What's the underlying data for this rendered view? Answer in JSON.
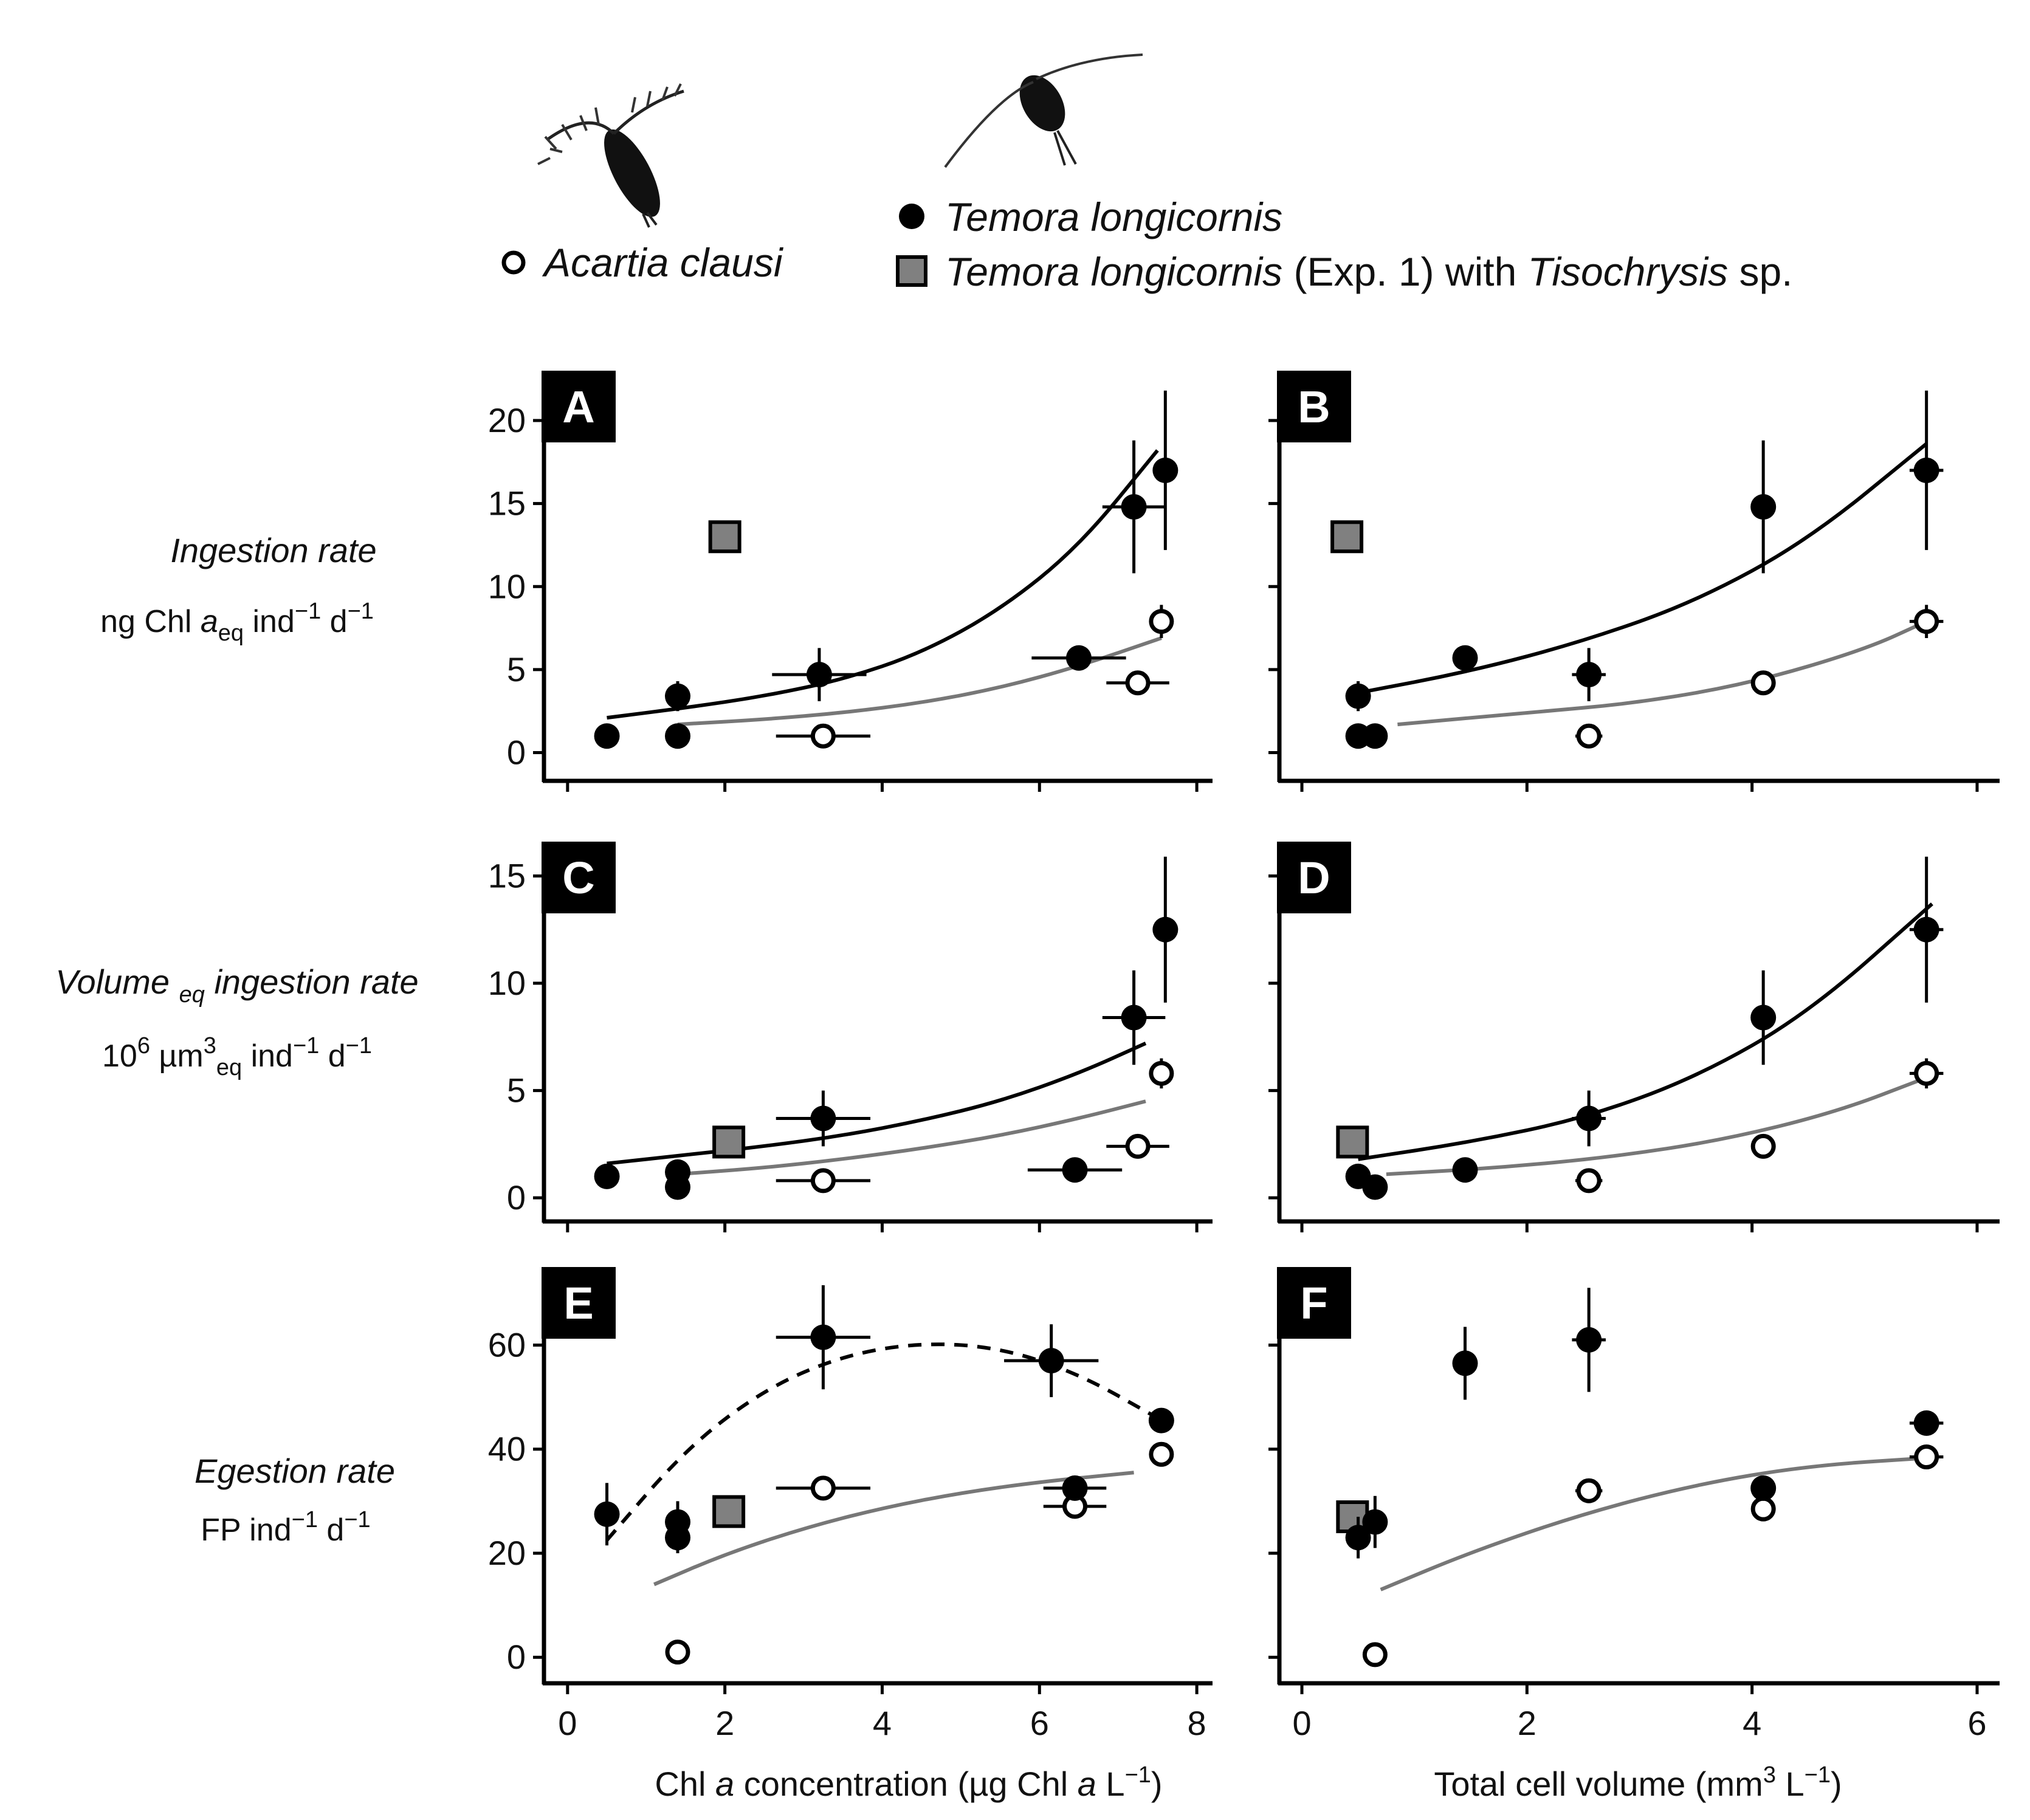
{
  "legend": {
    "acartia": "Acartia clausi",
    "temora": "Temora longicornis",
    "temora_exp1_a": "Temora longicornis",
    "temora_exp1_b": "(Exp. 1) with",
    "temora_exp1_c": "Tisochrysis",
    "temora_exp1_d": "sp."
  },
  "row_labels": [
    {
      "line1": "Ingestion rate",
      "line2_parts": [
        "ng Chl ",
        "a",
        "eq",
        " ind",
        "−1",
        " d",
        "−1"
      ]
    },
    {
      "line1_parts": [
        "Volume ",
        "eq",
        " ingestion rate"
      ],
      "line2_parts": [
        "10",
        "6",
        " µm",
        "3",
        "eq",
        " ind",
        "−1",
        " d",
        "−1"
      ]
    },
    {
      "line1": "Egestion rate",
      "line2_parts": [
        "FP ind",
        "−1",
        " d",
        "−1"
      ]
    }
  ],
  "x_titles": {
    "left_parts": [
      "Chl ",
      "a",
      " concentration (µg Chl ",
      "a",
      " L",
      "−1",
      ")"
    ],
    "right_parts": [
      "Total cell volume (mm",
      "3",
      " L",
      "−1",
      ")"
    ]
  },
  "colors": {
    "black": "#000000",
    "grey_fill": "#808080",
    "grey_line": "#777777",
    "white": "#ffffff"
  },
  "chart_data": [
    {
      "panel": "A",
      "type": "scatter",
      "xlabel": "",
      "ylabel": "Ingestion rate",
      "xlim": [
        -0.3,
        8.2
      ],
      "ylim": [
        -1.7,
        23
      ],
      "xticks": [
        0,
        2,
        4,
        6,
        8
      ],
      "yticks": [
        0,
        5,
        10,
        15,
        20
      ],
      "temora": [
        {
          "x": 0.5,
          "y": 1.0
        },
        {
          "x": 1.4,
          "y": 1.0,
          "yerr": 0.5
        },
        {
          "x": 1.4,
          "y": 3.4,
          "yerr": 0.9
        },
        {
          "x": 3.2,
          "y": 4.7,
          "xerr": 0.6,
          "yerr": 1.6
        },
        {
          "x": 6.5,
          "y": 5.7,
          "xerr": 0.6
        },
        {
          "x": 7.2,
          "y": 14.8,
          "xerr": 0.4,
          "yerr": 4.0
        },
        {
          "x": 7.6,
          "y": 17.0,
          "yerr": 4.8
        }
      ],
      "acartia": [
        {
          "x": 3.25,
          "y": 1.0,
          "xerr": 0.6
        },
        {
          "x": 7.25,
          "y": 4.2,
          "xerr": 0.4
        },
        {
          "x": 7.55,
          "y": 7.9,
          "yerr": 1.0
        }
      ],
      "tisochrysis": [
        {
          "x": 2.0,
          "y": 13.0
        }
      ],
      "fit_temora": {
        "style": "solid",
        "x": [
          0.5,
          1.5,
          2.5,
          3.5,
          4.5,
          5.5,
          6.5,
          7.5
        ],
        "y": [
          2.1,
          2.7,
          3.4,
          4.4,
          6.0,
          8.6,
          12.4,
          18.2
        ]
      },
      "fit_acartia": {
        "style": "solid",
        "x": [
          1.4,
          2.5,
          3.5,
          4.5,
          5.5,
          6.5,
          7.55
        ],
        "y": [
          1.7,
          2.0,
          2.4,
          3.0,
          3.9,
          5.2,
          6.9
        ]
      }
    },
    {
      "panel": "B",
      "type": "scatter",
      "xlabel": "",
      "ylabel": "",
      "xlim": [
        -0.2,
        6.2
      ],
      "ylim": [
        -1.7,
        23
      ],
      "xticks": [
        0,
        2,
        4,
        6
      ],
      "yticks": [
        0,
        5,
        10,
        15,
        20
      ],
      "temora": [
        {
          "x": 0.5,
          "y": 1.0
        },
        {
          "x": 0.65,
          "y": 1.0
        },
        {
          "x": 0.5,
          "y": 3.4,
          "yerr": 0.9
        },
        {
          "x": 1.45,
          "y": 5.7
        },
        {
          "x": 2.55,
          "y": 4.7,
          "xerr": 0.15,
          "yerr": 1.6
        },
        {
          "x": 4.1,
          "y": 14.8,
          "yerr": 4.0
        },
        {
          "x": 5.55,
          "y": 17.0,
          "xerr": 0.15,
          "yerr": 4.8
        }
      ],
      "acartia": [
        {
          "x": 2.55,
          "y": 1.0,
          "xerr": 0.12
        },
        {
          "x": 4.1,
          "y": 4.2
        },
        {
          "x": 5.55,
          "y": 7.9,
          "xerr": 0.15,
          "yerr": 1.0
        }
      ],
      "tisochrysis": [
        {
          "x": 0.4,
          "y": 13.0
        }
      ],
      "fit_temora": {
        "style": "solid",
        "x": [
          0.5,
          1.5,
          2.5,
          3.5,
          4.5,
          5.55
        ],
        "y": [
          3.6,
          4.9,
          6.7,
          9.1,
          12.8,
          18.6
        ]
      },
      "fit_acartia": {
        "style": "solid",
        "x": [
          0.85,
          2.0,
          3.0,
          4.0,
          5.0,
          5.55
        ],
        "y": [
          1.7,
          2.4,
          3.0,
          4.2,
          6.2,
          7.9
        ]
      }
    },
    {
      "panel": "C",
      "type": "scatter",
      "xlabel": "",
      "ylabel": "Volume eq ingestion rate",
      "xlim": [
        -0.3,
        8.2
      ],
      "ylim": [
        -1.1,
        16.6
      ],
      "xticks": [
        0,
        2,
        4,
        6,
        8
      ],
      "yticks": [
        0,
        5,
        10,
        15
      ],
      "temora": [
        {
          "x": 0.5,
          "y": 1.0
        },
        {
          "x": 1.4,
          "y": 1.2
        },
        {
          "x": 1.4,
          "y": 0.5
        },
        {
          "x": 3.25,
          "y": 3.7,
          "xerr": 0.6,
          "yerr": 1.3
        },
        {
          "x": 6.45,
          "y": 1.3,
          "xerr": 0.6
        },
        {
          "x": 7.2,
          "y": 8.4,
          "xerr": 0.4,
          "yerr": 2.2
        },
        {
          "x": 7.6,
          "y": 12.5,
          "yerr": 3.4
        }
      ],
      "acartia": [
        {
          "x": 3.25,
          "y": 0.8,
          "xerr": 0.6
        },
        {
          "x": 7.25,
          "y": 2.4,
          "xerr": 0.4
        },
        {
          "x": 7.55,
          "y": 5.8,
          "yerr": 0.7
        }
      ],
      "tisochrysis": [
        {
          "x": 2.05,
          "y": 2.6
        }
      ],
      "fit_temora": {
        "style": "solid",
        "x": [
          0.5,
          1.5,
          2.5,
          3.5,
          4.5,
          5.5,
          6.5,
          7.35
        ],
        "y": [
          1.6,
          2.0,
          2.4,
          2.9,
          3.6,
          4.5,
          5.8,
          7.2
        ]
      },
      "fit_acartia": {
        "style": "solid",
        "x": [
          1.4,
          2.5,
          3.5,
          4.5,
          5.5,
          6.5,
          7.35
        ],
        "y": [
          1.1,
          1.4,
          1.8,
          2.3,
          2.9,
          3.7,
          4.5
        ]
      }
    },
    {
      "panel": "D",
      "type": "scatter",
      "xlabel": "",
      "ylabel": "",
      "xlim": [
        -0.2,
        6.2
      ],
      "ylim": [
        -1.1,
        16.6
      ],
      "xticks": [
        0,
        2,
        4,
        6
      ],
      "yticks": [
        0,
        5,
        10,
        15
      ],
      "temora": [
        {
          "x": 0.5,
          "y": 1.0
        },
        {
          "x": 0.65,
          "y": 0.5
        },
        {
          "x": 1.45,
          "y": 1.3
        },
        {
          "x": 2.55,
          "y": 3.7,
          "xerr": 0.15,
          "yerr": 1.3
        },
        {
          "x": 4.1,
          "y": 8.4,
          "yerr": 2.2
        },
        {
          "x": 5.55,
          "y": 12.5,
          "xerr": 0.15,
          "yerr": 3.4
        }
      ],
      "acartia": [
        {
          "x": 2.55,
          "y": 0.8,
          "xerr": 0.12
        },
        {
          "x": 4.1,
          "y": 2.4
        },
        {
          "x": 5.55,
          "y": 5.8,
          "xerr": 0.15,
          "yerr": 0.7
        }
      ],
      "tisochrysis": [
        {
          "x": 0.45,
          "y": 2.6
        }
      ],
      "fit_temora": {
        "style": "solid",
        "x": [
          0.5,
          1.5,
          2.5,
          3.5,
          4.5,
          5.6
        ],
        "y": [
          1.8,
          2.6,
          3.7,
          5.6,
          8.6,
          13.7
        ]
      },
      "fit_acartia": {
        "style": "solid",
        "x": [
          0.75,
          1.75,
          2.75,
          3.75,
          4.75,
          5.55
        ],
        "y": [
          1.1,
          1.4,
          1.9,
          2.7,
          4.0,
          5.6
        ]
      }
    },
    {
      "panel": "E",
      "type": "scatter",
      "xlabel": "Chl a concentration (µg Chl a L−1)",
      "ylabel": "Egestion rate",
      "xlim": [
        -0.3,
        8.2
      ],
      "ylim": [
        -5,
        75
      ],
      "xticks": [
        0,
        2,
        4,
        6,
        8
      ],
      "yticks": [
        0,
        20,
        40,
        60
      ],
      "temora": [
        {
          "x": 0.5,
          "y": 27.5,
          "yerr": 6.0
        },
        {
          "x": 1.4,
          "y": 26.0,
          "yerr": 4.0
        },
        {
          "x": 1.4,
          "y": 23.0,
          "yerr": 3.0
        },
        {
          "x": 3.25,
          "y": 61.5,
          "xerr": 0.6,
          "yerr": 10.0
        },
        {
          "x": 6.15,
          "y": 57.0,
          "xerr": 0.6,
          "yerr": 7.0
        },
        {
          "x": 6.45,
          "y": 32.5,
          "xerr": 0.4
        },
        {
          "x": 7.55,
          "y": 45.5
        }
      ],
      "acartia": [
        {
          "x": 1.4,
          "y": 1.0
        },
        {
          "x": 3.25,
          "y": 32.5,
          "xerr": 0.6
        },
        {
          "x": 6.45,
          "y": 29.0,
          "xerr": 0.4
        },
        {
          "x": 7.55,
          "y": 39.0
        }
      ],
      "tisochrysis": [
        {
          "x": 2.05,
          "y": 28.0
        }
      ],
      "fit_temora": {
        "style": "dashed",
        "x": [
          0.5,
          1.5,
          2.5,
          3.5,
          4.5,
          5.5,
          6.5,
          7.5
        ],
        "y": [
          22.5,
          40.0,
          51.5,
          58.0,
          60.5,
          59.5,
          54.5,
          46.0
        ]
      },
      "fit_acartia": {
        "style": "solid",
        "x": [
          1.1,
          2.0,
          3.0,
          4.0,
          5.0,
          6.0,
          7.2
        ],
        "y": [
          14.0,
          19.8,
          24.8,
          28.7,
          31.6,
          33.7,
          35.5
        ]
      }
    },
    {
      "panel": "F",
      "type": "scatter",
      "xlabel": "Total cell volume (mm3 L−1)",
      "ylabel": "",
      "xlim": [
        -0.2,
        6.2
      ],
      "ylim": [
        -5,
        75
      ],
      "xticks": [
        0,
        2,
        4,
        6
      ],
      "yticks": [
        0,
        20,
        40,
        60
      ],
      "temora": [
        {
          "x": 0.5,
          "y": 23.0,
          "yerr": 4.0
        },
        {
          "x": 0.65,
          "y": 26.0,
          "yerr": 5.0
        },
        {
          "x": 1.45,
          "y": 56.5,
          "yerr": 7.0
        },
        {
          "x": 2.55,
          "y": 61.0,
          "xerr": 0.15,
          "yerr": 10.0
        },
        {
          "x": 4.1,
          "y": 32.5
        },
        {
          "x": 5.55,
          "y": 45.0,
          "xerr": 0.15
        }
      ],
      "acartia": [
        {
          "x": 0.65,
          "y": 0.5
        },
        {
          "x": 2.55,
          "y": 32.0,
          "xerr": 0.12
        },
        {
          "x": 4.1,
          "y": 28.5
        },
        {
          "x": 5.55,
          "y": 38.5,
          "xerr": 0.15
        }
      ],
      "tisochrysis": [
        {
          "x": 0.45,
          "y": 27.0
        }
      ],
      "fit_temora": null,
      "fit_acartia": {
        "style": "solid",
        "x": [
          0.7,
          1.5,
          2.5,
          3.5,
          4.5,
          5.55
        ],
        "y": [
          13.0,
          20.2,
          27.6,
          33.2,
          36.8,
          38.3
        ]
      }
    }
  ]
}
